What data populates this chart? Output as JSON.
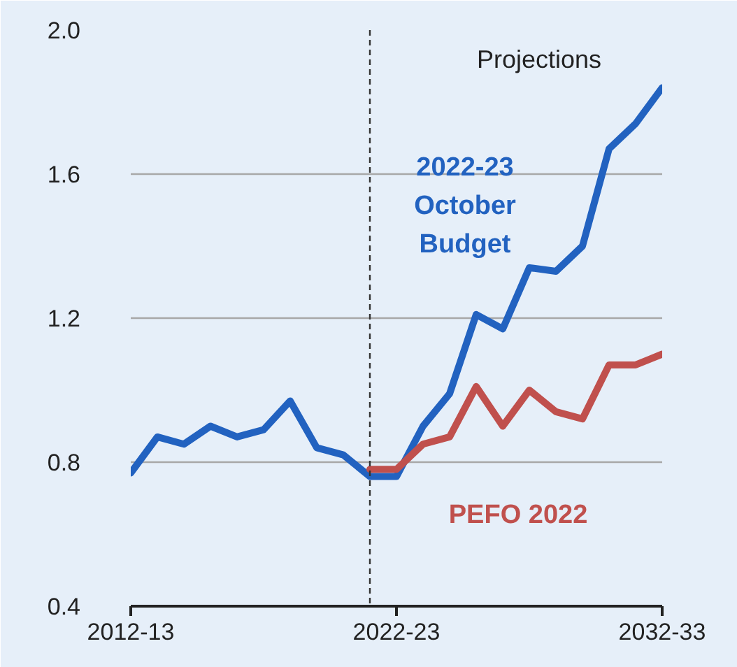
{
  "chart_data": {
    "type": "line",
    "categories": [
      "2012-13",
      null,
      null,
      null,
      null,
      null,
      null,
      null,
      null,
      null,
      "2022-23",
      null,
      null,
      null,
      null,
      null,
      null,
      null,
      null,
      null,
      "2032-33"
    ],
    "series": [
      {
        "name": "2022-23 October Budget",
        "color": "#2262c0",
        "values": [
          0.77,
          0.87,
          0.85,
          0.9,
          0.87,
          0.89,
          0.97,
          0.84,
          0.82,
          0.76,
          0.76,
          0.9,
          0.99,
          1.21,
          1.17,
          1.34,
          1.33,
          1.4,
          1.67,
          1.74,
          1.84
        ]
      },
      {
        "name": "PEFO 2022",
        "color": "#c0504d",
        "values": [
          null,
          null,
          null,
          null,
          null,
          null,
          null,
          null,
          null,
          0.78,
          0.78,
          0.85,
          0.87,
          1.01,
          0.9,
          1.0,
          0.94,
          0.92,
          1.07,
          1.07,
          1.1
        ]
      }
    ],
    "ylim": [
      0.4,
      2.0
    ],
    "yticks": [
      0.4,
      0.8,
      1.2,
      1.6,
      {
        "value": 2,
        "label": "2.0"
      }
    ],
    "annotations": [
      "Projections"
    ],
    "grid": "y",
    "legend": false,
    "line_style": "solid"
  }
}
